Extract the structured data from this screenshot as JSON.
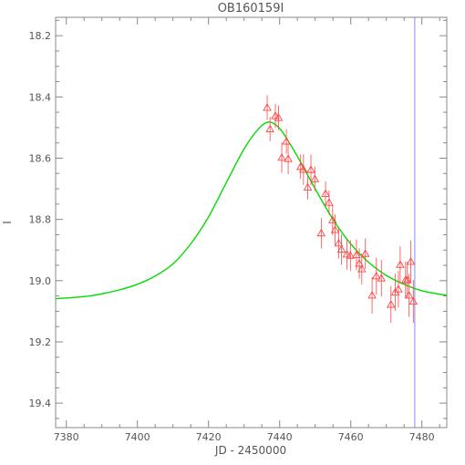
{
  "chart_data": {
    "type": "scatter",
    "title": "OB160159I",
    "xlabel": "JD - 2450000",
    "ylabel": "I",
    "xlim": [
      7377,
      7487
    ],
    "ylim": [
      19.48,
      18.14
    ],
    "y_inverted": true,
    "grid": false,
    "x_ticks": [
      {
        "value": 7380,
        "label": "7380"
      },
      {
        "value": 7400,
        "label": "7400"
      },
      {
        "value": 7420,
        "label": "7420"
      },
      {
        "value": 7440,
        "label": "7440"
      },
      {
        "value": 7460,
        "label": "7460"
      },
      {
        "value": 7480,
        "label": "7480"
      }
    ],
    "y_ticks": [
      {
        "value": 18.2,
        "label": "18.2"
      },
      {
        "value": 18.4,
        "label": "18.4"
      },
      {
        "value": 18.6,
        "label": "18.6"
      },
      {
        "value": 18.8,
        "label": "18.8"
      },
      {
        "value": 19.0,
        "label": "19.0"
      },
      {
        "value": 19.2,
        "label": "19.2"
      },
      {
        "value": 19.4,
        "label": "19.4"
      }
    ],
    "model_curve": {
      "color": "#00dd00",
      "points": [
        [
          7377,
          19.059
        ],
        [
          7385,
          19.052
        ],
        [
          7390,
          19.043
        ],
        [
          7395,
          19.03
        ],
        [
          7400,
          19.012
        ],
        [
          7405,
          18.985
        ],
        [
          7410,
          18.945
        ],
        [
          7415,
          18.88
        ],
        [
          7420,
          18.792
        ],
        [
          7425,
          18.68
        ],
        [
          7430,
          18.57
        ],
        [
          7434,
          18.505
        ],
        [
          7437,
          18.482
        ],
        [
          7440,
          18.503
        ],
        [
          7443,
          18.555
        ],
        [
          7446,
          18.615
        ],
        [
          7450,
          18.7
        ],
        [
          7455,
          18.8
        ],
        [
          7460,
          18.88
        ],
        [
          7465,
          18.94
        ],
        [
          7470,
          18.983
        ],
        [
          7475,
          19.012
        ],
        [
          7480,
          19.033
        ],
        [
          7487,
          19.048
        ]
      ]
    },
    "vertical_marker": {
      "x": 7478,
      "color": "#8888ee"
    },
    "data_points": {
      "color": "#ff4444",
      "marker": "triangle",
      "points": [
        {
          "x": 7436.5,
          "y": 18.435,
          "err": 0.04
        },
        {
          "x": 7437.3,
          "y": 18.505,
          "err": 0.04
        },
        {
          "x": 7438.8,
          "y": 18.462,
          "err": 0.04
        },
        {
          "x": 7439.7,
          "y": 18.468,
          "err": 0.04
        },
        {
          "x": 7440.6,
          "y": 18.598,
          "err": 0.05
        },
        {
          "x": 7441.9,
          "y": 18.545,
          "err": 0.04
        },
        {
          "x": 7442.4,
          "y": 18.602,
          "err": 0.05
        },
        {
          "x": 7445.9,
          "y": 18.628,
          "err": 0.04
        },
        {
          "x": 7446.7,
          "y": 18.637,
          "err": 0.05
        },
        {
          "x": 7447.9,
          "y": 18.695,
          "err": 0.04
        },
        {
          "x": 7448.8,
          "y": 18.638,
          "err": 0.05
        },
        {
          "x": 7449.9,
          "y": 18.668,
          "err": 0.04
        },
        {
          "x": 7451.7,
          "y": 18.845,
          "err": 0.05
        },
        {
          "x": 7452.9,
          "y": 18.716,
          "err": 0.04
        },
        {
          "x": 7453.9,
          "y": 18.745,
          "err": 0.04
        },
        {
          "x": 7454.9,
          "y": 18.802,
          "err": 0.05
        },
        {
          "x": 7455.6,
          "y": 18.834,
          "err": 0.05
        },
        {
          "x": 7456.6,
          "y": 18.878,
          "err": 0.05
        },
        {
          "x": 7457.4,
          "y": 18.898,
          "err": 0.05
        },
        {
          "x": 7458.9,
          "y": 18.914,
          "err": 0.05
        },
        {
          "x": 7459.9,
          "y": 18.918,
          "err": 0.05
        },
        {
          "x": 7461.6,
          "y": 18.916,
          "err": 0.05
        },
        {
          "x": 7462.4,
          "y": 18.944,
          "err": 0.05
        },
        {
          "x": 7463.1,
          "y": 18.962,
          "err": 0.05
        },
        {
          "x": 7464.1,
          "y": 18.912,
          "err": 0.05
        },
        {
          "x": 7466.0,
          "y": 19.048,
          "err": 0.06
        },
        {
          "x": 7467.2,
          "y": 18.985,
          "err": 0.06
        },
        {
          "x": 7468.6,
          "y": 18.992,
          "err": 0.06
        },
        {
          "x": 7471.3,
          "y": 19.078,
          "err": 0.06
        },
        {
          "x": 7472.5,
          "y": 19.038,
          "err": 0.06
        },
        {
          "x": 7473.4,
          "y": 19.028,
          "err": 0.06
        },
        {
          "x": 7473.9,
          "y": 18.948,
          "err": 0.06
        },
        {
          "x": 7475.4,
          "y": 18.998,
          "err": 0.06
        },
        {
          "x": 7475.9,
          "y": 18.998,
          "err": 0.06
        },
        {
          "x": 7476.4,
          "y": 19.048,
          "err": 0.07
        },
        {
          "x": 7476.9,
          "y": 18.938,
          "err": 0.07
        },
        {
          "x": 7477.6,
          "y": 19.068,
          "err": 0.07
        }
      ]
    }
  }
}
